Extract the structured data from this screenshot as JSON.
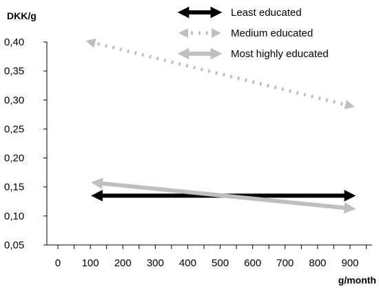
{
  "chart_data": {
    "type": "line",
    "title": "",
    "ylabel": "DKK/g",
    "xlabel": "g/month",
    "xlim": [
      0,
      900
    ],
    "ylim": [
      0.05,
      0.4
    ],
    "x_ticks": [
      "0",
      "100",
      "200",
      "300",
      "400",
      "500",
      "600",
      "700",
      "800",
      "900"
    ],
    "y_ticks": [
      "0,05",
      "0,10",
      "0,15",
      "0,20",
      "0,25",
      "0,30",
      "0,35",
      "0,40"
    ],
    "grid": false,
    "legend_position": "top-right",
    "series": [
      {
        "name": "Least educated",
        "color": "#000000",
        "style": "solid",
        "arrows": "both",
        "points": [
          {
            "x": 120,
            "y": 0.135
          },
          {
            "x": 900,
            "y": 0.135
          }
        ]
      },
      {
        "name": "Medium educated",
        "color": "#bfbfbf",
        "style": "dotted",
        "arrows": "both",
        "points": [
          {
            "x": 100,
            "y": 0.4
          },
          {
            "x": 900,
            "y": 0.29
          }
        ]
      },
      {
        "name": "Most highly educated",
        "color": "#bfbfbf",
        "style": "solid",
        "arrows": "both",
        "points": [
          {
            "x": 120,
            "y": 0.157
          },
          {
            "x": 900,
            "y": 0.113
          }
        ]
      }
    ]
  }
}
